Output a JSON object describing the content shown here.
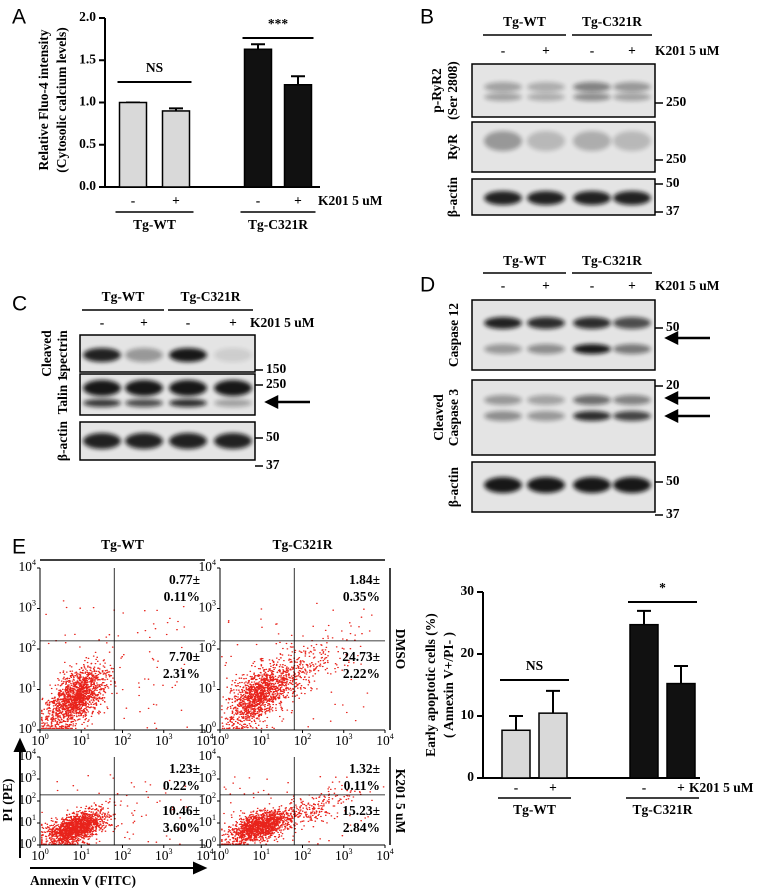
{
  "panel_letters": [
    "A",
    "B",
    "C",
    "D",
    "E"
  ],
  "chart_data": [
    {
      "type": "bar",
      "ylabel": [
        "Relative Fluo-4 intensity",
        "(Cytosolic calcium levels)"
      ],
      "categories": [
        "-",
        "+",
        "-",
        "+"
      ],
      "groups": [
        "Tg-WT",
        "Tg-C321R"
      ],
      "treatment": "K201 5 uM",
      "values": [
        1.0,
        0.9,
        1.63,
        1.21
      ],
      "errors": [
        0,
        0.03,
        0.06,
        0.1
      ],
      "colors": [
        "#d9d9d9",
        "#d9d9d9",
        "#111111",
        "#111111"
      ],
      "ylim": [
        0,
        2
      ],
      "yticks": [
        {
          "value": 0,
          "label": "0.0"
        },
        {
          "value": 0.5,
          "label": "0.5"
        },
        {
          "value": 1,
          "label": "1.0"
        },
        {
          "value": 1.5,
          "label": "1.5"
        },
        {
          "value": 2,
          "label": "2.0"
        }
      ],
      "annotations": [
        "NS",
        "***"
      ]
    },
    {
      "type": "bar",
      "ylabel": [
        "Early apoptotic cells (%)",
        "( Annexin V+/PI- )"
      ],
      "categories": [
        "-",
        "+",
        "-",
        "+"
      ],
      "groups": [
        "Tg-WT",
        "Tg-C321R"
      ],
      "treatment": "K201 5 uM",
      "values": [
        7.7,
        10.46,
        24.73,
        15.23
      ],
      "errors": [
        2.31,
        3.6,
        2.22,
        2.84
      ],
      "colors": [
        "#d9d9d9",
        "#d9d9d9",
        "#111111",
        "#111111"
      ],
      "ylim": [
        0,
        30
      ],
      "yticks": [
        0,
        10,
        20,
        30
      ],
      "annotations": [
        "NS",
        "*"
      ]
    }
  ],
  "blots": {
    "B": {
      "groups": [
        "Tg-WT",
        "Tg-C321R"
      ],
      "lanes": [
        "-",
        "+",
        "-",
        "+"
      ],
      "treatment": "K201 5 uM",
      "rows": [
        {
          "label": [
            "p-RyR2",
            "(Ser 2808)"
          ],
          "markers": [
            "250"
          ]
        },
        {
          "label": [
            "RyR"
          ],
          "markers": [
            "250"
          ]
        },
        {
          "label": [
            "β-actin"
          ],
          "markers": [
            "50",
            "37"
          ]
        }
      ]
    },
    "C": {
      "groups": [
        "Tg-WT",
        "Tg-C321R"
      ],
      "lanes": [
        "-",
        "+",
        "-",
        "+"
      ],
      "treatment": "K201 5 uM",
      "rows": [
        {
          "label": [
            "Cleaved",
            "spectrin"
          ],
          "markers": [
            "150"
          ]
        },
        {
          "label": [
            "Talin 1"
          ],
          "markers": [
            "250"
          ]
        },
        {
          "label": [
            "β-actin"
          ],
          "markers": [
            "50",
            "37"
          ]
        }
      ]
    },
    "D": {
      "groups": [
        "Tg-WT",
        "Tg-C321R"
      ],
      "lanes": [
        "-",
        "+",
        "-",
        "+"
      ],
      "treatment": "K201 5 uM",
      "rows": [
        {
          "label": [
            "Caspase 12"
          ],
          "markers": [
            "50"
          ]
        },
        {
          "label": [
            "Cleaved",
            "Caspase 3"
          ],
          "markers": [
            "20"
          ]
        },
        {
          "label": [
            "β-actin"
          ],
          "markers": [
            "50",
            "37"
          ]
        }
      ]
    }
  },
  "flow": {
    "columns": [
      "Tg-WT",
      "Tg-C321R"
    ],
    "rows": [
      "DMSO",
      "K201 5 uM"
    ],
    "plots": [
      [
        {
          "ur": [
            "0.77±",
            "0.11%"
          ],
          "lr": [
            "7.70±",
            "2.31%"
          ]
        },
        {
          "ur": [
            "1.84±",
            "0.35%"
          ],
          "lr": [
            "24.73±",
            "2.22%"
          ]
        }
      ],
      [
        {
          "ur": [
            "1.23±",
            "0.22%"
          ],
          "lr": [
            "10.46±",
            "3.60%"
          ]
        },
        {
          "ur": [
            "1.32±",
            "0.11%"
          ],
          "lr": [
            "15.23±",
            "2.84%"
          ]
        }
      ]
    ],
    "x_label": "Annexin V (FITC)",
    "y_label": "PI (PE)",
    "tick_base": "10",
    "tick_exponents": [
      "0",
      "1",
      "2",
      "3",
      "4"
    ]
  }
}
